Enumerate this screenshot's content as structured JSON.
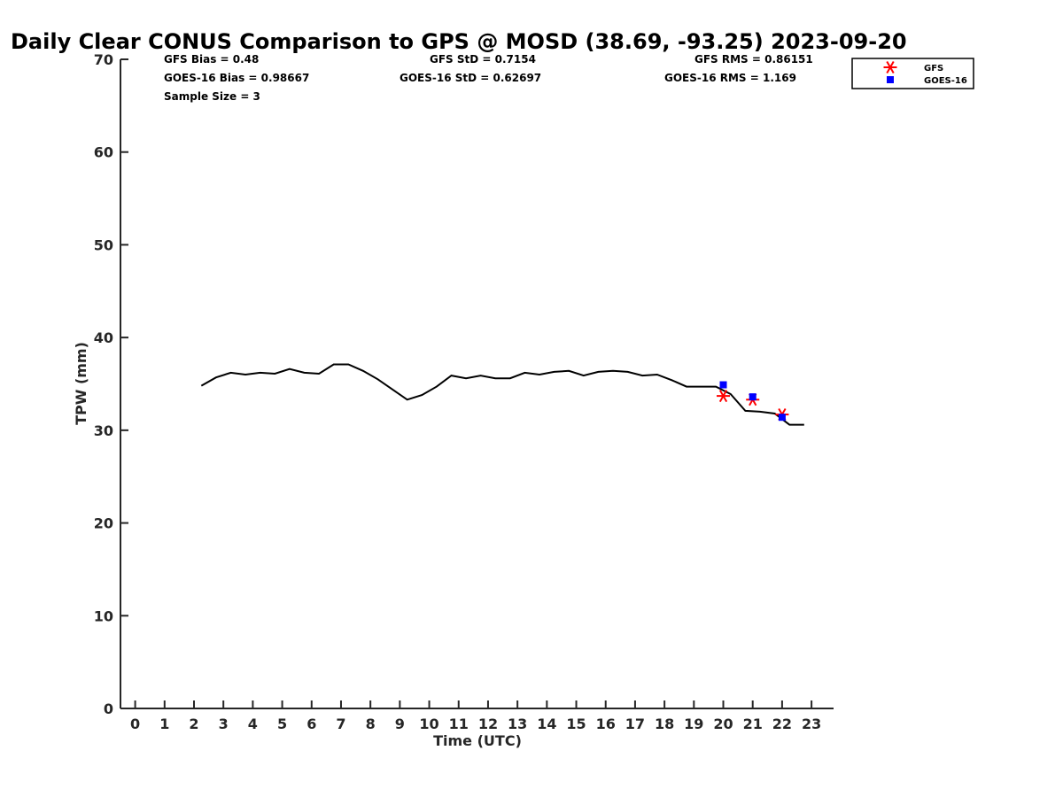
{
  "chart_data": {
    "type": "line",
    "title": "Daily Clear CONUS Comparison to GPS @ MOSD (38.69, -93.25) 2023-09-20",
    "xlabel": "Time (UTC)",
    "ylabel": "TPW (mm)",
    "xlim": [
      -0.5,
      23.75
    ],
    "ylim": [
      0,
      70
    ],
    "x_ticks": [
      0,
      1,
      2,
      3,
      4,
      5,
      6,
      7,
      8,
      9,
      10,
      11,
      12,
      13,
      14,
      15,
      16,
      17,
      18,
      19,
      20,
      21,
      22,
      23
    ],
    "y_ticks": [
      0,
      10,
      20,
      30,
      40,
      50,
      60,
      70
    ],
    "grid": false,
    "legend_position": "top-right",
    "stats": {
      "gfs_bias": "GFS Bias = 0.48",
      "goes_bias": "GOES-16 Bias = 0.98667",
      "sample_size": "Sample Size = 3",
      "gfs_std": "GFS StD = 0.7154",
      "goes_std": "GOES-16 StD = 0.62697",
      "gfs_rms": "GFS RMS = 0.86151",
      "goes_rms": "GOES-16 RMS = 1.169"
    },
    "series": [
      {
        "role": "gps",
        "color": "#000000",
        "x": [
          2.25,
          2.75,
          3.25,
          3.75,
          4.25,
          4.75,
          5.25,
          5.75,
          6.25,
          6.75,
          7.25,
          7.75,
          8.25,
          8.75,
          9.25,
          9.75,
          10.25,
          10.75,
          11.25,
          11.75,
          12.25,
          12.75,
          13.25,
          13.75,
          14.25,
          14.75,
          15.25,
          15.75,
          16.25,
          16.75,
          17.25,
          17.75,
          18.25,
          18.75,
          19.25,
          19.75,
          20.25,
          20.75,
          21.25,
          21.75,
          22.25,
          22.75
        ],
        "y": [
          34.8,
          35.7,
          36.2,
          36.0,
          36.2,
          36.1,
          36.6,
          36.2,
          36.1,
          37.1,
          37.1,
          36.4,
          35.5,
          34.4,
          33.3,
          33.8,
          34.7,
          35.9,
          35.6,
          35.9,
          35.6,
          35.6,
          36.2,
          36.0,
          36.3,
          36.4,
          35.9,
          36.3,
          36.4,
          36.3,
          35.9,
          36.0,
          35.4,
          34.7,
          34.7,
          34.7,
          33.9,
          32.1,
          32.0,
          31.8,
          30.6,
          30.6
        ]
      },
      {
        "name": "GFS",
        "color": "#ff0000",
        "marker": "asterisk",
        "x": [
          20,
          21,
          22
        ],
        "y": [
          33.7,
          33.3,
          31.7
        ]
      },
      {
        "name": "GOES-16",
        "color": "#0000ff",
        "marker": "square",
        "x": [
          20,
          21,
          22
        ],
        "y": [
          34.9,
          33.6,
          31.4
        ]
      }
    ]
  }
}
